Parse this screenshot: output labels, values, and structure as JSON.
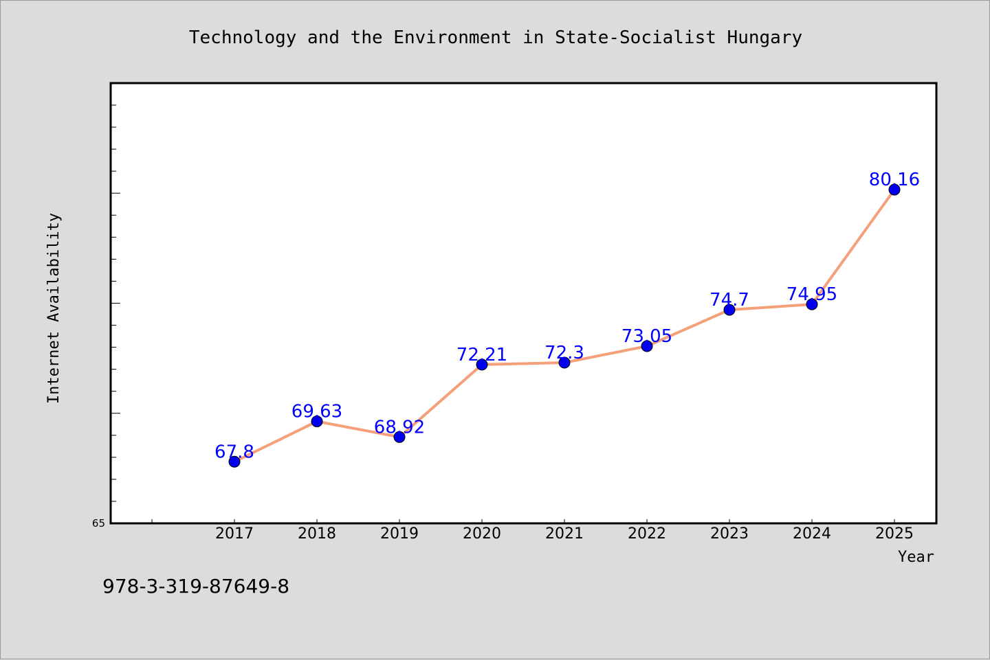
{
  "chart_data": {
    "type": "line",
    "title": "Technology and the Environment in State-Socialist Hungary",
    "xlabel": "Year",
    "ylabel": "Internet Availability",
    "categories": [
      "2017",
      "2018",
      "2019",
      "2020",
      "2021",
      "2022",
      "2023",
      "2024",
      "2025"
    ],
    "values": [
      67.8,
      69.63,
      68.92,
      72.21,
      72.3,
      73.05,
      74.7,
      74.95,
      80.16
    ],
    "data_labels": [
      "67.8",
      "69.63",
      "68.92",
      "72.21",
      "72.3",
      "73.05",
      "74.7",
      "74.95",
      "80.16"
    ],
    "y_tick_labels": [
      "65"
    ],
    "ylim": [
      65,
      85
    ],
    "grid": false,
    "line_color": "#f4a07a",
    "marker_color": "#0000ee",
    "label_color": "#0000ff",
    "plot_background": "#ffffff",
    "page_background": "#dcdcdc"
  },
  "footnote": "978-3-319-87649-8"
}
